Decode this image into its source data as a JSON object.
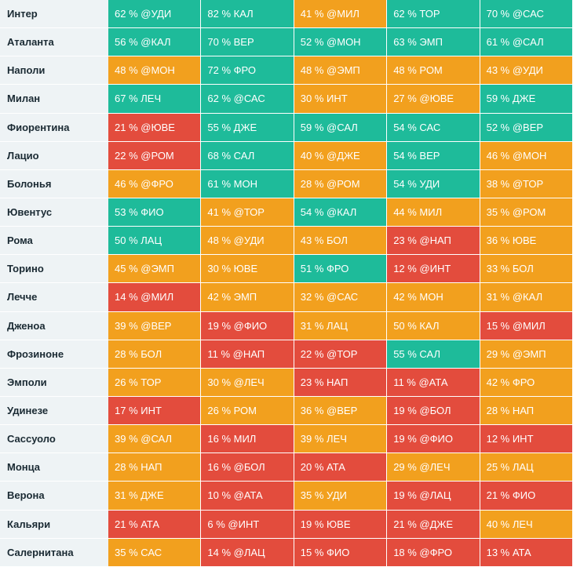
{
  "colors": {
    "green": "#1ebb9a",
    "orange": "#f2a01e",
    "red": "#e34c3d"
  },
  "rows": [
    {
      "team": "Интер",
      "cells": [
        {
          "text": "62 % @УДИ",
          "tone": "green"
        },
        {
          "text": "82 % КАЛ",
          "tone": "green"
        },
        {
          "text": "41 % @МИЛ",
          "tone": "orange"
        },
        {
          "text": "62 % ТОР",
          "tone": "green"
        },
        {
          "text": "70 % @САС",
          "tone": "green"
        }
      ]
    },
    {
      "team": "Аталанта",
      "cells": [
        {
          "text": "56 % @КАЛ",
          "tone": "green"
        },
        {
          "text": "70 % ВЕР",
          "tone": "green"
        },
        {
          "text": "52 % @МОН",
          "tone": "green"
        },
        {
          "text": "63 % ЭМП",
          "tone": "green"
        },
        {
          "text": "61 % @САЛ",
          "tone": "green"
        }
      ]
    },
    {
      "team": "Наполи",
      "cells": [
        {
          "text": "48 % @МОН",
          "tone": "orange"
        },
        {
          "text": "72 % ФРО",
          "tone": "green"
        },
        {
          "text": "48 % @ЭМП",
          "tone": "orange"
        },
        {
          "text": "48 % РОМ",
          "tone": "orange"
        },
        {
          "text": "43 % @УДИ",
          "tone": "orange"
        }
      ]
    },
    {
      "team": "Милан",
      "cells": [
        {
          "text": "67 % ЛЕЧ",
          "tone": "green"
        },
        {
          "text": "62 % @САС",
          "tone": "green"
        },
        {
          "text": "30 % ИНТ",
          "tone": "orange"
        },
        {
          "text": "27 % @ЮВЕ",
          "tone": "orange"
        },
        {
          "text": "59 % ДЖЕ",
          "tone": "green"
        }
      ]
    },
    {
      "team": "Фиорентина",
      "cells": [
        {
          "text": "21 % @ЮВЕ",
          "tone": "red"
        },
        {
          "text": "55 % ДЖЕ",
          "tone": "green"
        },
        {
          "text": "59 % @САЛ",
          "tone": "green"
        },
        {
          "text": "54 % САС",
          "tone": "green"
        },
        {
          "text": "52 % @ВЕР",
          "tone": "green"
        }
      ]
    },
    {
      "team": "Лацио",
      "cells": [
        {
          "text": "22 % @РОМ",
          "tone": "red"
        },
        {
          "text": "68 % САЛ",
          "tone": "green"
        },
        {
          "text": "40 % @ДЖЕ",
          "tone": "orange"
        },
        {
          "text": "54 % ВЕР",
          "tone": "green"
        },
        {
          "text": "46 % @МОН",
          "tone": "orange"
        }
      ]
    },
    {
      "team": "Болонья",
      "cells": [
        {
          "text": "46 % @ФРО",
          "tone": "orange"
        },
        {
          "text": "61 % МОН",
          "tone": "green"
        },
        {
          "text": "28 % @РОМ",
          "tone": "orange"
        },
        {
          "text": "54 % УДИ",
          "tone": "green"
        },
        {
          "text": "38 % @ТОР",
          "tone": "orange"
        }
      ]
    },
    {
      "team": "Ювентус",
      "cells": [
        {
          "text": "53 % ФИО",
          "tone": "green"
        },
        {
          "text": "41 % @ТОР",
          "tone": "orange"
        },
        {
          "text": "54 % @КАЛ",
          "tone": "green"
        },
        {
          "text": "44 % МИЛ",
          "tone": "orange"
        },
        {
          "text": "35 % @РОМ",
          "tone": "orange"
        }
      ]
    },
    {
      "team": "Рома",
      "cells": [
        {
          "text": "50 % ЛАЦ",
          "tone": "green"
        },
        {
          "text": "48 % @УДИ",
          "tone": "orange"
        },
        {
          "text": "43 % БОЛ",
          "tone": "orange"
        },
        {
          "text": "23 % @НАП",
          "tone": "red"
        },
        {
          "text": "36 % ЮВЕ",
          "tone": "orange"
        }
      ]
    },
    {
      "team": "Торино",
      "cells": [
        {
          "text": "45 % @ЭМП",
          "tone": "orange"
        },
        {
          "text": "30 % ЮВЕ",
          "tone": "orange"
        },
        {
          "text": "51 % ФРО",
          "tone": "green"
        },
        {
          "text": "12 % @ИНТ",
          "tone": "red"
        },
        {
          "text": "33 % БОЛ",
          "tone": "orange"
        }
      ]
    },
    {
      "team": "Лечче",
      "cells": [
        {
          "text": "14 % @МИЛ",
          "tone": "red"
        },
        {
          "text": "42 % ЭМП",
          "tone": "orange"
        },
        {
          "text": "32 % @САС",
          "tone": "orange"
        },
        {
          "text": "42 % МОН",
          "tone": "orange"
        },
        {
          "text": "31 % @КАЛ",
          "tone": "orange"
        }
      ]
    },
    {
      "team": "Дженоа",
      "cells": [
        {
          "text": "39 % @ВЕР",
          "tone": "orange"
        },
        {
          "text": "19 % @ФИО",
          "tone": "red"
        },
        {
          "text": "31 % ЛАЦ",
          "tone": "orange"
        },
        {
          "text": "50 % КАЛ",
          "tone": "orange"
        },
        {
          "text": "15 % @МИЛ",
          "tone": "red"
        }
      ]
    },
    {
      "team": "Фрозиноне",
      "cells": [
        {
          "text": "28 % БОЛ",
          "tone": "orange"
        },
        {
          "text": "11 % @НАП",
          "tone": "red"
        },
        {
          "text": "22 % @ТОР",
          "tone": "red"
        },
        {
          "text": "55 % САЛ",
          "tone": "green"
        },
        {
          "text": "29 % @ЭМП",
          "tone": "orange"
        }
      ]
    },
    {
      "team": "Эмполи",
      "cells": [
        {
          "text": "26 % ТОР",
          "tone": "orange"
        },
        {
          "text": "30 % @ЛЕЧ",
          "tone": "orange"
        },
        {
          "text": "23 % НАП",
          "tone": "red"
        },
        {
          "text": "11 % @АТА",
          "tone": "red"
        },
        {
          "text": "42 % ФРО",
          "tone": "orange"
        }
      ]
    },
    {
      "team": "Удинезе",
      "cells": [
        {
          "text": "17 % ИНТ",
          "tone": "red"
        },
        {
          "text": "26 % РОМ",
          "tone": "orange"
        },
        {
          "text": "36 % @ВЕР",
          "tone": "orange"
        },
        {
          "text": "19 % @БОЛ",
          "tone": "red"
        },
        {
          "text": "28 % НАП",
          "tone": "orange"
        }
      ]
    },
    {
      "team": "Сассуоло",
      "cells": [
        {
          "text": "39 % @САЛ",
          "tone": "orange"
        },
        {
          "text": "16 % МИЛ",
          "tone": "red"
        },
        {
          "text": "39 % ЛЕЧ",
          "tone": "orange"
        },
        {
          "text": "19 % @ФИО",
          "tone": "red"
        },
        {
          "text": "12 % ИНТ",
          "tone": "red"
        }
      ]
    },
    {
      "team": "Монца",
      "cells": [
        {
          "text": "28 % НАП",
          "tone": "orange"
        },
        {
          "text": "16 % @БОЛ",
          "tone": "red"
        },
        {
          "text": "20 % АТА",
          "tone": "red"
        },
        {
          "text": "29 % @ЛЕЧ",
          "tone": "orange"
        },
        {
          "text": "25 % ЛАЦ",
          "tone": "orange"
        }
      ]
    },
    {
      "team": "Верона",
      "cells": [
        {
          "text": "31 % ДЖЕ",
          "tone": "orange"
        },
        {
          "text": "10 % @АТА",
          "tone": "red"
        },
        {
          "text": "35 % УДИ",
          "tone": "orange"
        },
        {
          "text": "19 % @ЛАЦ",
          "tone": "red"
        },
        {
          "text": "21 % ФИО",
          "tone": "red"
        }
      ]
    },
    {
      "team": "Кальяри",
      "cells": [
        {
          "text": "21 % АТА",
          "tone": "red"
        },
        {
          "text": "6 % @ИНТ",
          "tone": "red"
        },
        {
          "text": "19 % ЮВЕ",
          "tone": "red"
        },
        {
          "text": "21 % @ДЖЕ",
          "tone": "red"
        },
        {
          "text": "40 % ЛЕЧ",
          "tone": "orange"
        }
      ]
    },
    {
      "team": "Салернитана",
      "cells": [
        {
          "text": "35 % САС",
          "tone": "orange"
        },
        {
          "text": "14 % @ЛАЦ",
          "tone": "red"
        },
        {
          "text": "15 % ФИО",
          "tone": "red"
        },
        {
          "text": "18 % @ФРО",
          "tone": "red"
        },
        {
          "text": "13 % АТА",
          "tone": "red"
        }
      ]
    }
  ]
}
